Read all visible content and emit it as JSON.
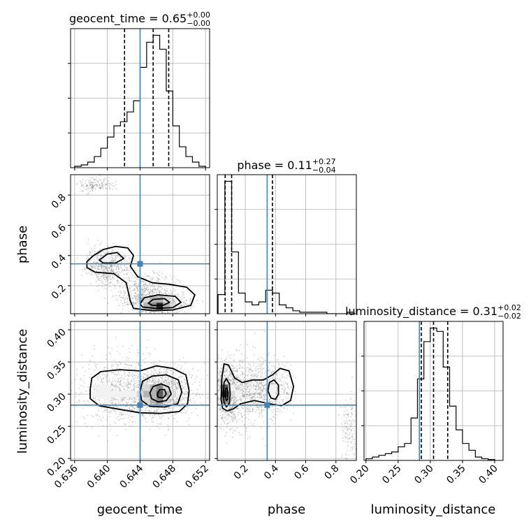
{
  "chart_data": {
    "type": "corner",
    "parameters": [
      "geocent_time",
      "phase",
      "luminosity_distance"
    ],
    "colors": {
      "truth": "#4682b4",
      "hist": "#000000",
      "scatter": "#808080",
      "grid": "#b0b0b0",
      "density": [
        "#f2f2f2",
        "#d9d9d9",
        "#b3b3b3",
        "#8c8c8c",
        "#595959",
        "#262626"
      ]
    },
    "grid": true,
    "truths": {
      "geocent_time": 0.644,
      "phase": 0.345,
      "luminosity_distance": 0.283
    },
    "axes": {
      "geocent_time": {
        "range": [
          0.6355,
          0.6525
        ],
        "ticks": [
          0.636,
          0.64,
          0.644,
          0.648,
          0.652
        ],
        "tick_labels": [
          "0.636",
          "0.640",
          "0.644",
          "0.648",
          "0.652"
        ],
        "label": "geocent_time"
      },
      "phase": {
        "range": [
          0.015,
          0.935
        ],
        "ticks": [
          0.2,
          0.4,
          0.6,
          0.8
        ],
        "tick_labels": [
          "0.2",
          "0.4",
          "0.6",
          "0.8"
        ],
        "label": "phase"
      },
      "luminosity_distance": {
        "range": [
          0.197,
          0.413
        ],
        "ticks": [
          0.2,
          0.25,
          0.3,
          0.35,
          0.4
        ],
        "tick_labels": [
          "0.20",
          "0.25",
          "0.30",
          "0.35",
          "0.40"
        ],
        "label": "luminosity_distance"
      }
    },
    "titles": {
      "geocent_time": {
        "name": "geocent_time",
        "value": "0.65",
        "plus": "+0.00",
        "minus": "−0.00"
      },
      "phase": {
        "name": "phase",
        "value": "0.11",
        "plus": "+0.27",
        "minus": "−0.04"
      },
      "luminosity_distance": {
        "name": "luminosity_distance",
        "value": "0.31",
        "plus": "+0.02",
        "minus": "−0.02"
      }
    },
    "quantiles": {
      "geocent_time": [
        0.6421,
        0.6456,
        0.6475
      ],
      "phase": [
        0.067,
        0.11,
        0.38
      ],
      "luminosity_distance": [
        0.286,
        0.305,
        0.327
      ]
    },
    "histograms": {
      "geocent_time": {
        "bin_edges": [
          0.636,
          0.6368,
          0.6376,
          0.6384,
          0.6392,
          0.64,
          0.6408,
          0.6416,
          0.6424,
          0.6432,
          0.644,
          0.6448,
          0.6456,
          0.6464,
          0.6472,
          0.648,
          0.6488,
          0.6496,
          0.6504,
          0.6512,
          0.652
        ],
        "counts": [
          1,
          2,
          4,
          8,
          14,
          22,
          30,
          33,
          40,
          48,
          72,
          90,
          95,
          85,
          55,
          30,
          15,
          8,
          4,
          1
        ]
      },
      "phase": {
        "bin_edges": [
          0.02,
          0.065,
          0.11,
          0.155,
          0.2,
          0.245,
          0.29,
          0.335,
          0.38,
          0.425,
          0.47,
          0.515,
          0.56,
          0.605,
          0.65,
          0.695,
          0.74,
          0.785,
          0.83,
          0.875,
          0.92
        ],
        "counts": [
          13,
          90,
          42,
          14,
          8,
          6,
          8,
          16,
          14,
          6,
          4,
          2,
          1,
          1,
          1,
          1,
          0,
          0,
          0,
          1
        ]
      },
      "luminosity_distance": {
        "bin_edges": [
          0.2,
          0.21,
          0.22,
          0.23,
          0.24,
          0.25,
          0.26,
          0.27,
          0.28,
          0.29,
          0.3,
          0.31,
          0.32,
          0.33,
          0.34,
          0.35,
          0.36,
          0.37,
          0.38,
          0.39,
          0.4
        ],
        "counts": [
          1,
          2,
          3,
          4,
          5,
          8,
          10,
          25,
          48,
          70,
          78,
          76,
          55,
          32,
          18,
          10,
          6,
          2,
          1,
          0.5
        ]
      }
    },
    "clusters": [
      {
        "x": "geocent_time",
        "y": "phase",
        "n": 2000,
        "seed": 11,
        "blobs": [
          {
            "w": 0.18,
            "cx": 0.64,
            "cy": 0.33,
            "sx": 0.0013,
            "sy": 0.06
          },
          {
            "w": 0.22,
            "cx": 0.6445,
            "cy": 0.17,
            "sx": 0.0018,
            "sy": 0.06
          },
          {
            "w": 0.42,
            "cx": 0.6462,
            "cy": 0.08,
            "sx": 0.0017,
            "sy": 0.035
          },
          {
            "w": 0.08,
            "cx": 0.6385,
            "cy": 0.87,
            "sx": 0.0011,
            "sy": 0.025
          }
        ]
      },
      {
        "x": "geocent_time",
        "y": "luminosity_distance",
        "n": 2000,
        "seed": 23,
        "blobs": [
          {
            "w": 0.6,
            "cx": 0.6465,
            "cy": 0.302,
            "sx": 0.0021,
            "sy": 0.018
          },
          {
            "w": 0.4,
            "cx": 0.6415,
            "cy": 0.302,
            "sx": 0.0025,
            "sy": 0.028
          }
        ]
      },
      {
        "x": "phase",
        "y": "luminosity_distance",
        "n": 2000,
        "seed": 37,
        "blobs": [
          {
            "w": 0.48,
            "cx": 0.08,
            "cy": 0.302,
            "sx": 0.04,
            "sy": 0.022
          },
          {
            "w": 0.3,
            "cx": 0.34,
            "cy": 0.305,
            "sx": 0.08,
            "sy": 0.022
          },
          {
            "w": 0.07,
            "cx": 0.89,
            "cy": 0.25,
            "sx": 0.03,
            "sy": 0.025
          },
          {
            "w": 0.15,
            "cx": 0.2,
            "cy": 0.3,
            "sx": 0.06,
            "sy": 0.03
          }
        ]
      }
    ],
    "contours": [
      {
        "x": "geocent_time",
        "y": "phase",
        "paths": [
          [
            [
              0.6375,
              0.36
            ],
            [
              0.6383,
              0.4
            ],
            [
              0.6395,
              0.44
            ],
            [
              0.641,
              0.46
            ],
            [
              0.6425,
              0.45
            ],
            [
              0.6432,
              0.4
            ],
            [
              0.6428,
              0.33
            ],
            [
              0.6437,
              0.26
            ],
            [
              0.6455,
              0.22
            ],
            [
              0.6475,
              0.21
            ],
            [
              0.6497,
              0.19
            ],
            [
              0.6507,
              0.14
            ],
            [
              0.6502,
              0.07
            ],
            [
              0.648,
              0.04
            ],
            [
              0.6455,
              0.035
            ],
            [
              0.6432,
              0.05
            ],
            [
              0.6428,
              0.1
            ],
            [
              0.6423,
              0.22
            ],
            [
              0.6408,
              0.28
            ],
            [
              0.6385,
              0.29
            ],
            [
              0.6375,
              0.32
            ]
          ],
          [
            [
              0.639,
              0.37
            ],
            [
              0.64,
              0.41
            ],
            [
              0.6412,
              0.42
            ],
            [
              0.642,
              0.38
            ],
            [
              0.641,
              0.35
            ],
            [
              0.6395,
              0.35
            ]
          ],
          [
            [
              0.644,
              0.08
            ],
            [
              0.6445,
              0.12
            ],
            [
              0.6462,
              0.14
            ],
            [
              0.6483,
              0.13
            ],
            [
              0.649,
              0.09
            ],
            [
              0.648,
              0.055
            ],
            [
              0.6458,
              0.05
            ],
            [
              0.6443,
              0.06
            ]
          ],
          [
            [
              0.645,
              0.085
            ],
            [
              0.6456,
              0.11
            ],
            [
              0.647,
              0.115
            ],
            [
              0.6476,
              0.09
            ],
            [
              0.6468,
              0.07
            ],
            [
              0.6455,
              0.07
            ]
          ]
        ]
      },
      {
        "x": "geocent_time",
        "y": "luminosity_distance",
        "paths": [
          [
            [
              0.6379,
              0.307
            ],
            [
              0.6381,
              0.325
            ],
            [
              0.6392,
              0.335
            ],
            [
              0.6415,
              0.338
            ],
            [
              0.644,
              0.336
            ],
            [
              0.646,
              0.344
            ],
            [
              0.648,
              0.34
            ],
            [
              0.6496,
              0.33
            ],
            [
              0.65,
              0.305
            ],
            [
              0.6498,
              0.285
            ],
            [
              0.6488,
              0.273
            ],
            [
              0.6465,
              0.27
            ],
            [
              0.644,
              0.271
            ],
            [
              0.6412,
              0.277
            ],
            [
              0.639,
              0.282
            ],
            [
              0.6379,
              0.293
            ]
          ],
          [
            [
              0.644,
              0.303
            ],
            [
              0.6443,
              0.32
            ],
            [
              0.6455,
              0.328
            ],
            [
              0.6472,
              0.33
            ],
            [
              0.6487,
              0.322
            ],
            [
              0.6491,
              0.303
            ],
            [
              0.6486,
              0.285
            ],
            [
              0.647,
              0.28
            ],
            [
              0.6452,
              0.281
            ],
            [
              0.6442,
              0.29
            ]
          ],
          [
            [
              0.6452,
              0.302
            ],
            [
              0.6456,
              0.312
            ],
            [
              0.6466,
              0.316
            ],
            [
              0.6475,
              0.311
            ],
            [
              0.6478,
              0.3
            ],
            [
              0.6472,
              0.29
            ],
            [
              0.6462,
              0.288
            ],
            [
              0.6454,
              0.293
            ]
          ],
          [
            [
              0.6461,
              0.3
            ],
            [
              0.6464,
              0.307
            ],
            [
              0.647,
              0.307
            ],
            [
              0.6472,
              0.3
            ],
            [
              0.6468,
              0.294
            ],
            [
              0.6462,
              0.295
            ]
          ]
        ]
      },
      {
        "x": "phase",
        "y": "luminosity_distance",
        "paths": [
          [
            [
              0.04,
              0.292
            ],
            [
              0.045,
              0.325
            ],
            [
              0.06,
              0.347
            ],
            [
              0.09,
              0.345
            ],
            [
              0.13,
              0.325
            ],
            [
              0.18,
              0.318
            ],
            [
              0.25,
              0.322
            ],
            [
              0.32,
              0.322
            ],
            [
              0.38,
              0.33
            ],
            [
              0.43,
              0.34
            ],
            [
              0.49,
              0.336
            ],
            [
              0.52,
              0.312
            ],
            [
              0.5,
              0.29
            ],
            [
              0.44,
              0.282
            ],
            [
              0.36,
              0.285
            ],
            [
              0.26,
              0.29
            ],
            [
              0.17,
              0.285
            ],
            [
              0.12,
              0.277
            ],
            [
              0.08,
              0.274
            ],
            [
              0.05,
              0.278
            ]
          ],
          [
            [
              0.055,
              0.3
            ],
            [
              0.06,
              0.318
            ],
            [
              0.075,
              0.324
            ],
            [
              0.095,
              0.316
            ],
            [
              0.1,
              0.3
            ],
            [
              0.095,
              0.286
            ],
            [
              0.075,
              0.28
            ],
            [
              0.06,
              0.287
            ]
          ],
          [
            [
              0.35,
              0.305
            ],
            [
              0.36,
              0.318
            ],
            [
              0.39,
              0.322
            ],
            [
              0.42,
              0.314
            ],
            [
              0.42,
              0.3
            ],
            [
              0.4,
              0.292
            ],
            [
              0.37,
              0.294
            ]
          ],
          [
            [
              0.066,
              0.298
            ],
            [
              0.07,
              0.308
            ],
            [
              0.08,
              0.31
            ],
            [
              0.087,
              0.302
            ],
            [
              0.085,
              0.292
            ],
            [
              0.075,
              0.29
            ]
          ]
        ]
      }
    ],
    "density_cells": [
      {
        "x": "geocent_time",
        "y": "phase",
        "dx": 0.0008,
        "dy": 0.045,
        "cells": [
          [
            0.6448,
            0.11,
            2
          ],
          [
            0.6456,
            0.11,
            3
          ],
          [
            0.6464,
            0.11,
            3
          ],
          [
            0.6472,
            0.11,
            2
          ],
          [
            0.6448,
            0.065,
            3
          ],
          [
            0.6456,
            0.065,
            4
          ],
          [
            0.6464,
            0.065,
            6
          ],
          [
            0.6472,
            0.065,
            3
          ],
          [
            0.648,
            0.065,
            2
          ],
          [
            0.644,
            0.065,
            1
          ],
          [
            0.6488,
            0.11,
            1
          ],
          [
            0.6432,
            0.38,
            1
          ],
          [
            0.64,
            0.38,
            1
          ]
        ]
      },
      {
        "x": "geocent_time",
        "y": "luminosity_distance",
        "dx": 0.0008,
        "dy": 0.01,
        "cells": [
          [
            0.6384,
            0.3,
            1
          ],
          [
            0.6392,
            0.3,
            1
          ],
          [
            0.64,
            0.3,
            1
          ],
          [
            0.6408,
            0.3,
            1
          ],
          [
            0.6416,
            0.3,
            1
          ],
          [
            0.6424,
            0.3,
            1
          ],
          [
            0.6432,
            0.3,
            1
          ],
          [
            0.644,
            0.3,
            2
          ],
          [
            0.6448,
            0.3,
            3
          ],
          [
            0.6456,
            0.3,
            3
          ],
          [
            0.6464,
            0.3,
            5
          ],
          [
            0.6472,
            0.3,
            3
          ],
          [
            0.648,
            0.3,
            2
          ],
          [
            0.6488,
            0.3,
            1
          ],
          [
            0.6392,
            0.31,
            1
          ],
          [
            0.6448,
            0.31,
            2
          ],
          [
            0.6456,
            0.31,
            3
          ],
          [
            0.6464,
            0.31,
            4
          ],
          [
            0.6472,
            0.31,
            2
          ],
          [
            0.6448,
            0.29,
            2
          ],
          [
            0.6456,
            0.29,
            3
          ],
          [
            0.6464,
            0.29,
            4
          ],
          [
            0.6472,
            0.29,
            2
          ],
          [
            0.64,
            0.31,
            1
          ],
          [
            0.64,
            0.29,
            1
          ]
        ]
      },
      {
        "x": "phase",
        "y": "luminosity_distance",
        "dx": 0.045,
        "dy": 0.01,
        "cells": [
          [
            0.065,
            0.3,
            6
          ],
          [
            0.065,
            0.31,
            5
          ],
          [
            0.065,
            0.29,
            4
          ],
          [
            0.11,
            0.3,
            2
          ],
          [
            0.11,
            0.31,
            1
          ],
          [
            0.02,
            0.3,
            1
          ],
          [
            0.065,
            0.32,
            2
          ],
          [
            0.065,
            0.28,
            1
          ],
          [
            0.155,
            0.3,
            1
          ],
          [
            0.38,
            0.31,
            1
          ],
          [
            0.38,
            0.3,
            1
          ]
        ]
      }
    ]
  }
}
